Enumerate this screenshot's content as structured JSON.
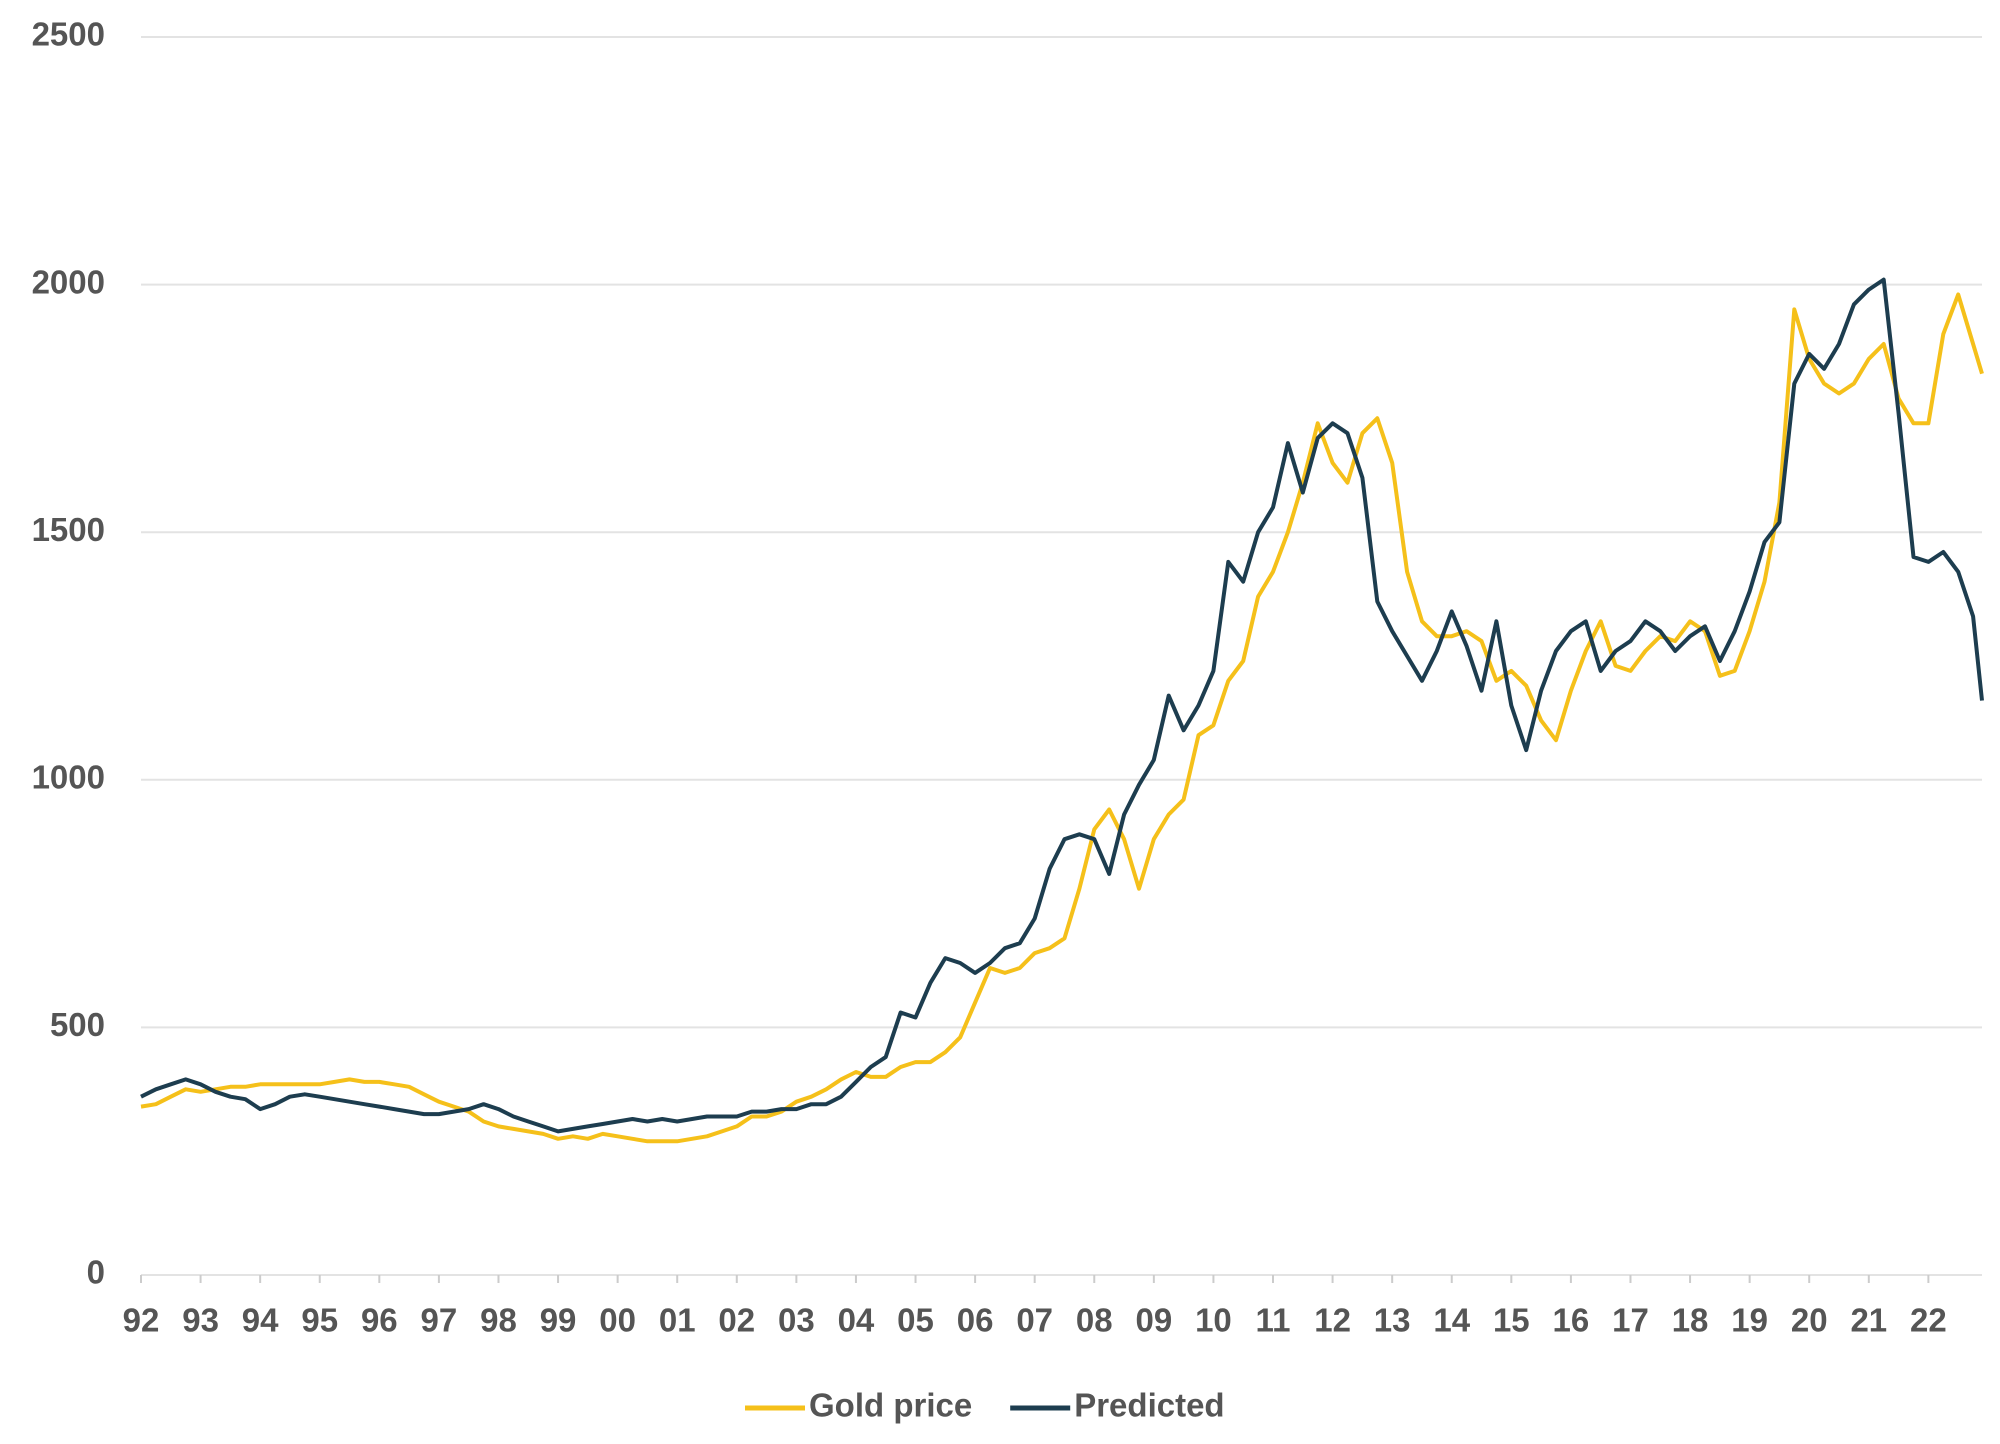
{
  "chart_data": {
    "type": "line",
    "x": [
      1992,
      1992.25,
      1992.5,
      1992.75,
      1993,
      1993.25,
      1993.5,
      1993.75,
      1994,
      1994.25,
      1994.5,
      1994.75,
      1995,
      1995.25,
      1995.5,
      1995.75,
      1996,
      1996.25,
      1996.5,
      1996.75,
      1997,
      1997.25,
      1997.5,
      1997.75,
      1998,
      1998.25,
      1998.5,
      1998.75,
      1999,
      1999.25,
      1999.5,
      1999.75,
      2000,
      2000.25,
      2000.5,
      2000.75,
      2001,
      2001.25,
      2001.5,
      2001.75,
      2002,
      2002.25,
      2002.5,
      2002.75,
      2003,
      2003.25,
      2003.5,
      2003.75,
      2004,
      2004.25,
      2004.5,
      2004.75,
      2005,
      2005.25,
      2005.5,
      2005.75,
      2006,
      2006.25,
      2006.5,
      2006.75,
      2007,
      2007.25,
      2007.5,
      2007.75,
      2008,
      2008.25,
      2008.5,
      2008.75,
      2009,
      2009.25,
      2009.5,
      2009.75,
      2010,
      2010.25,
      2010.5,
      2010.75,
      2011,
      2011.25,
      2011.5,
      2011.75,
      2012,
      2012.25,
      2012.5,
      2012.75,
      2013,
      2013.25,
      2013.5,
      2013.75,
      2014,
      2014.25,
      2014.5,
      2014.75,
      2015,
      2015.25,
      2015.5,
      2015.75,
      2016,
      2016.25,
      2016.5,
      2016.75,
      2017,
      2017.25,
      2017.5,
      2017.75,
      2018,
      2018.25,
      2018.5,
      2018.75,
      2019,
      2019.25,
      2019.5,
      2019.75,
      2020,
      2020.25,
      2020.5,
      2020.75,
      2021,
      2021.25,
      2021.5,
      2021.75,
      2022,
      2022.25,
      2022.5,
      2022.75,
      2022.9
    ],
    "series": [
      {
        "name": "Gold price",
        "color": "#f5c01a",
        "values": [
          340,
          345,
          360,
          375,
          370,
          375,
          380,
          380,
          385,
          385,
          385,
          385,
          385,
          390,
          395,
          390,
          390,
          385,
          380,
          365,
          350,
          340,
          330,
          310,
          300,
          295,
          290,
          285,
          275,
          280,
          275,
          285,
          280,
          275,
          270,
          270,
          270,
          275,
          280,
          290,
          300,
          320,
          320,
          330,
          350,
          360,
          375,
          395,
          410,
          400,
          400,
          420,
          430,
          430,
          450,
          480,
          550,
          620,
          610,
          620,
          650,
          660,
          680,
          780,
          900,
          940,
          880,
          780,
          880,
          930,
          960,
          1090,
          1110,
          1200,
          1240,
          1370,
          1420,
          1500,
          1600,
          1720,
          1640,
          1600,
          1700,
          1730,
          1640,
          1420,
          1320,
          1290,
          1290,
          1300,
          1280,
          1200,
          1220,
          1190,
          1120,
          1080,
          1180,
          1260,
          1320,
          1230,
          1220,
          1260,
          1290,
          1280,
          1320,
          1300,
          1210,
          1220,
          1300,
          1400,
          1560,
          1950,
          1850,
          1800,
          1780,
          1800,
          1850,
          1880,
          1770,
          1720,
          1720,
          1900,
          1980,
          1880,
          1820
        ]
      },
      {
        "name": "Predicted",
        "color": "#1d3d4f",
        "values": [
          360,
          375,
          385,
          395,
          385,
          370,
          360,
          355,
          335,
          345,
          360,
          365,
          360,
          355,
          350,
          345,
          340,
          335,
          330,
          325,
          325,
          330,
          335,
          345,
          335,
          320,
          310,
          300,
          290,
          295,
          300,
          305,
          310,
          315,
          310,
          315,
          310,
          315,
          320,
          320,
          320,
          330,
          330,
          335,
          335,
          345,
          345,
          360,
          390,
          420,
          440,
          530,
          520,
          590,
          640,
          630,
          610,
          630,
          660,
          670,
          720,
          820,
          880,
          890,
          880,
          810,
          930,
          990,
          1040,
          1170,
          1100,
          1150,
          1220,
          1440,
          1400,
          1500,
          1550,
          1680,
          1580,
          1690,
          1720,
          1700,
          1610,
          1360,
          1300,
          1250,
          1200,
          1260,
          1340,
          1270,
          1180,
          1320,
          1150,
          1060,
          1180,
          1260,
          1300,
          1320,
          1220,
          1260,
          1280,
          1320,
          1300,
          1260,
          1290,
          1310,
          1240,
          1300,
          1380,
          1480,
          1520,
          1800,
          1860,
          1830,
          1880,
          1960,
          1990,
          2010,
          1740,
          1450,
          1440,
          1460,
          1420,
          1330,
          1160
        ]
      }
    ],
    "xlim": [
      1992,
      2022.9
    ],
    "xticks": [
      {
        "value": 1992,
        "label": "92"
      },
      {
        "value": 1993,
        "label": "93"
      },
      {
        "value": 1994,
        "label": "94"
      },
      {
        "value": 1995,
        "label": "95"
      },
      {
        "value": 1996,
        "label": "96"
      },
      {
        "value": 1997,
        "label": "97"
      },
      {
        "value": 1998,
        "label": "98"
      },
      {
        "value": 1999,
        "label": "99"
      },
      {
        "value": 2000,
        "label": "00"
      },
      {
        "value": 2001,
        "label": "01"
      },
      {
        "value": 2002,
        "label": "02"
      },
      {
        "value": 2003,
        "label": "03"
      },
      {
        "value": 2004,
        "label": "04"
      },
      {
        "value": 2005,
        "label": "05"
      },
      {
        "value": 2006,
        "label": "06"
      },
      {
        "value": 2007,
        "label": "07"
      },
      {
        "value": 2008,
        "label": "08"
      },
      {
        "value": 2009,
        "label": "09"
      },
      {
        "value": 2010,
        "label": "10"
      },
      {
        "value": 2011,
        "label": "11"
      },
      {
        "value": 2012,
        "label": "12"
      },
      {
        "value": 2013,
        "label": "13"
      },
      {
        "value": 2014,
        "label": "14"
      },
      {
        "value": 2015,
        "label": "15"
      },
      {
        "value": 2016,
        "label": "16"
      },
      {
        "value": 2017,
        "label": "17"
      },
      {
        "value": 2018,
        "label": "18"
      },
      {
        "value": 2019,
        "label": "19"
      },
      {
        "value": 2020,
        "label": "20"
      },
      {
        "value": 2021,
        "label": "21"
      },
      {
        "value": 2022,
        "label": "22"
      }
    ],
    "ylim": [
      0,
      2500
    ],
    "yticks": [
      0,
      500,
      1000,
      1500,
      2000,
      2500
    ],
    "grid": true,
    "legend": "bottom"
  }
}
